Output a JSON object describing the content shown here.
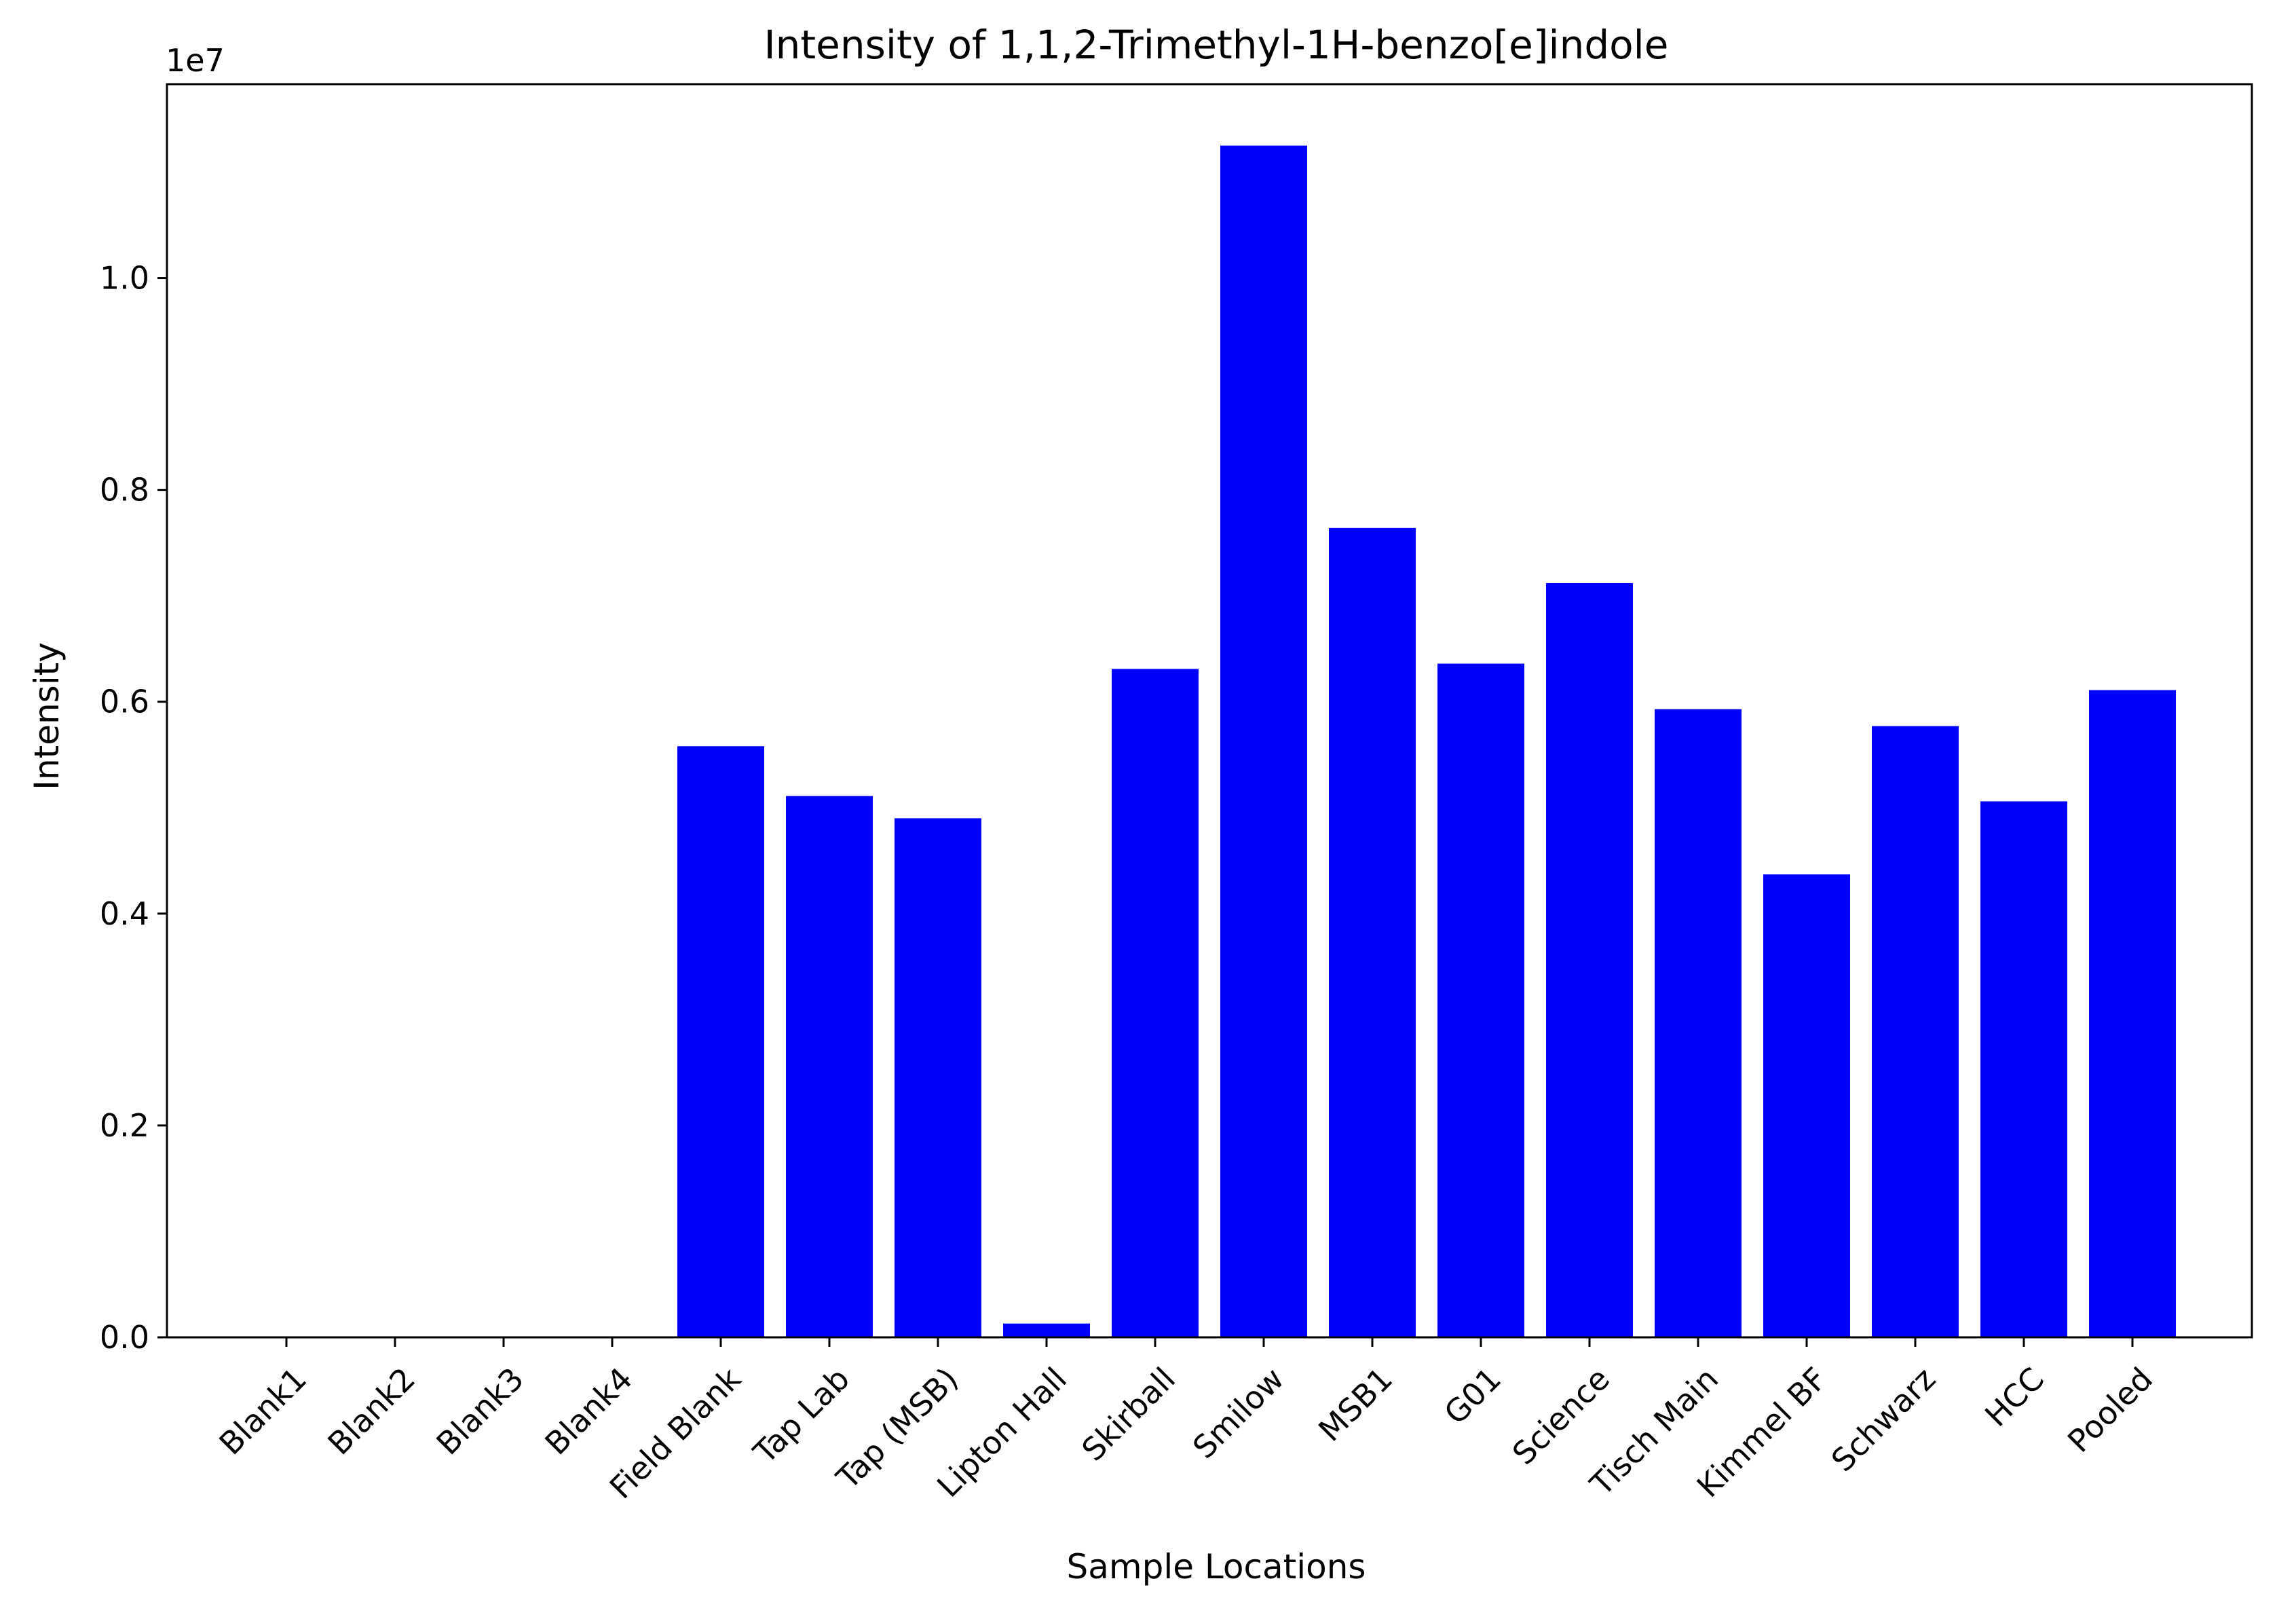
{
  "chart_data": {
    "type": "bar",
    "title": "Intensity of 1,1,2-Trimethyl-1H-benzo[e]indole",
    "xlabel": "Sample Locations",
    "ylabel": "Intensity",
    "y_offset_label": "1e7",
    "categories": [
      "Blank1",
      "Blank2",
      "Blank3",
      "Blank4",
      "Field Blank",
      "Tap Lab",
      "Tap (MSB)",
      "Lipton Hall",
      "Skirball",
      "Smilow",
      "MSB1",
      "G01",
      "Science",
      "Tisch Main",
      "Kimmel BF",
      "Schwarz",
      "HCC",
      "Pooled"
    ],
    "values": [
      0,
      0,
      0,
      0,
      5580000,
      5110000,
      4900000,
      130000,
      6310000,
      11250000,
      7640000,
      6360000,
      7120000,
      5930000,
      4370000,
      5770000,
      5060000,
      6110000
    ],
    "ylim": [
      0,
      11830000
    ],
    "yticks": [
      0,
      2000000,
      4000000,
      6000000,
      8000000,
      10000000
    ],
    "ytick_labels": [
      "0.0",
      "0.2",
      "0.4",
      "0.6",
      "0.8",
      "1.0"
    ],
    "bar_color": "#0000ff",
    "grid": false,
    "legend": "none"
  }
}
